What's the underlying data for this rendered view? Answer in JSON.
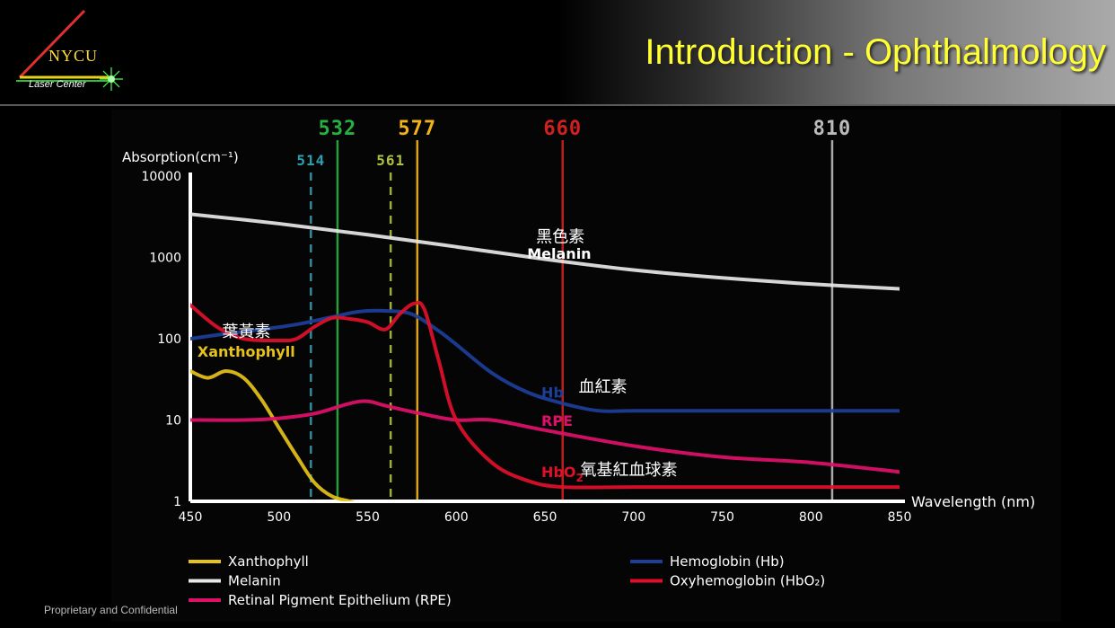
{
  "header": {
    "title": "Introduction - Ophthalmology",
    "logo_name": "NYCU",
    "logo_subtitle": "Laser Center"
  },
  "footer": {
    "text": "Proprietary and Confidential"
  },
  "colors": {
    "xanthophyll": "#e6c21a",
    "melanin": "#e8e8e8",
    "rpe": "#e0106a",
    "hb": "#1d3f9a",
    "hbo2": "#e0102a",
    "laser_514": "#2aa0b0",
    "laser_532": "#28b040",
    "laser_561": "#b0c040",
    "laser_577": "#f2b31a",
    "laser_660": "#d02020",
    "laser_810": "#bbbbbb"
  },
  "chart_data": {
    "type": "line",
    "ylabel": "Absorption(cm⁻¹)",
    "xlabel": "Wavelength (nm)",
    "ylog": true,
    "ylim": [
      1,
      10000
    ],
    "xlim": [
      450,
      850
    ],
    "xticks": [
      "450",
      "500",
      "550",
      "600",
      "650",
      "700",
      "750",
      "800",
      "850"
    ],
    "yticks": [
      "1",
      "10",
      "100",
      "1000",
      "10000"
    ],
    "laser_lines": [
      {
        "label": "532",
        "x": 533,
        "style": "solid",
        "color": "laser_532",
        "tier": "top"
      },
      {
        "label": "577",
        "x": 578,
        "style": "solid",
        "color": "laser_577",
        "tier": "top"
      },
      {
        "label": "660",
        "x": 660,
        "style": "solid",
        "color": "laser_660",
        "tier": "top"
      },
      {
        "label": "810",
        "x": 812,
        "style": "solid",
        "color": "laser_810",
        "tier": "top"
      },
      {
        "label": "514",
        "x": 518,
        "style": "dashed",
        "color": "laser_514",
        "tier": "sub"
      },
      {
        "label": "561",
        "x": 563,
        "style": "dashed",
        "color": "laser_561",
        "tier": "sub"
      }
    ],
    "series": [
      {
        "name": "Xanthophyll",
        "color": "xanthophyll",
        "x": [
          450,
          460,
          470,
          480,
          490,
          500,
          510,
          520,
          530,
          540,
          545
        ],
        "y": [
          40,
          33,
          40,
          33,
          18,
          8,
          3.6,
          1.7,
          1.15,
          1,
          0.9
        ]
      },
      {
        "name": "Melanin",
        "color": "melanin",
        "x": [
          450,
          500,
          550,
          600,
          650,
          700,
          750,
          800,
          850
        ],
        "y": [
          3400,
          2600,
          1900,
          1350,
          950,
          700,
          560,
          470,
          410
        ]
      },
      {
        "name": "Retinal Pigment Epithelium (RPE)",
        "color": "rpe",
        "x": [
          450,
          480,
          500,
          520,
          540,
          550,
          560,
          580,
          600,
          620,
          650,
          700,
          750,
          800,
          850
        ],
        "y": [
          10,
          10,
          10.5,
          12,
          16,
          17,
          15,
          12,
          10,
          10,
          7.5,
          4.8,
          3.5,
          3,
          2.3
        ]
      },
      {
        "name": "Hemoglobin (Hb)",
        "color": "hb",
        "x": [
          450,
          470,
          490,
          510,
          530,
          545,
          560,
          575,
          590,
          600,
          620,
          640,
          660,
          680,
          700,
          750,
          800,
          850
        ],
        "y": [
          100,
          115,
          130,
          150,
          185,
          215,
          220,
          200,
          125,
          85,
          38,
          22,
          16,
          13,
          13,
          13,
          13,
          13
        ]
      },
      {
        "name": "Oxyhemoglobin (HbO₂)",
        "color": "hbo2",
        "x": [
          450,
          465,
          480,
          500,
          510,
          520,
          530,
          540,
          550,
          560,
          568,
          576,
          582,
          590,
          600,
          620,
          640,
          660,
          700,
          750,
          800,
          850
        ],
        "y": [
          260,
          140,
          100,
          95,
          100,
          140,
          180,
          175,
          160,
          130,
          200,
          270,
          230,
          55,
          10,
          3,
          1.8,
          1.5,
          1.5,
          1.5,
          1.5,
          1.5
        ]
      }
    ],
    "annotations": [
      {
        "text": "黑色素",
        "x": 645,
        "y": 1550,
        "color": "#ffffff",
        "kind": "cjk"
      },
      {
        "text": "Melanin",
        "x": 640,
        "y": 960,
        "color": "#ffffff",
        "kind": "en"
      },
      {
        "text": "葉黃素",
        "x": 468,
        "y": 105,
        "color": "#ffffff",
        "kind": "cjk"
      },
      {
        "text": "Xanthophyll",
        "x": 454,
        "y": 60,
        "color": "xanthophyll",
        "kind": "en"
      },
      {
        "text": "Hb",
        "x": 648,
        "y": 19,
        "color": "hb",
        "kind": "en"
      },
      {
        "text": "血紅素",
        "x": 669,
        "y": 22,
        "color": "#ffffff",
        "kind": "cjk"
      },
      {
        "text": "RPE",
        "x": 648,
        "y": 8.5,
        "color": "rpe",
        "kind": "en"
      },
      {
        "text": "HbO",
        "sub": "2",
        "x": 648,
        "y": 2.0,
        "color": "hbo2",
        "kind": "en"
      },
      {
        "text": "氧基紅血球素",
        "x": 670,
        "y": 2.1,
        "color": "#ffffff",
        "kind": "cjk"
      }
    ],
    "legend": {
      "placement": "bottom",
      "items": [
        {
          "label": "Xanthophyll",
          "color": "xanthophyll",
          "column": "left"
        },
        {
          "label": "Melanin",
          "color": "melanin",
          "column": "left"
        },
        {
          "label": "Retinal Pigment Epithelium (RPE)",
          "color": "rpe",
          "column": "left"
        },
        {
          "label": "Hemoglobin (Hb)",
          "color": "hb",
          "column": "right"
        },
        {
          "label": "Oxyhemoglobin (HbO₂)",
          "color": "hbo2",
          "column": "right"
        }
      ]
    }
  }
}
